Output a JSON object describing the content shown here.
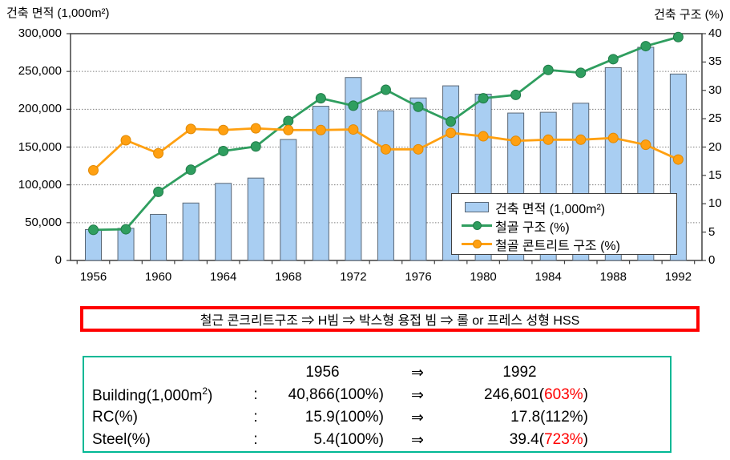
{
  "chart": {
    "title_left": "건축 면적 (1,000m²)",
    "title_right": "건축 구조 (%)"
  },
  "chart_data": {
    "type": "bar",
    "categories": [
      1956,
      1958,
      1960,
      1962,
      1964,
      1966,
      1968,
      1970,
      1972,
      1974,
      1976,
      1978,
      1980,
      1982,
      1984,
      1986,
      1988,
      1990,
      1992
    ],
    "x_tick_labels": [
      "1956",
      "1960",
      "1964",
      "1968",
      "1972",
      "1976",
      "1980",
      "1984",
      "1988",
      "1992"
    ],
    "series": [
      {
        "name": "건축 면적 (1,000m²)",
        "type": "bar",
        "axis": "left",
        "values": [
          40866,
          42500,
          61000,
          76000,
          102000,
          109000,
          160000,
          204000,
          242000,
          198000,
          215000,
          231000,
          220000,
          195000,
          196000,
          208000,
          255000,
          282000,
          246601
        ]
      },
      {
        "name": "철골 구조 (%)",
        "type": "line",
        "axis": "right",
        "values": [
          5.4,
          5.5,
          12.1,
          16.0,
          19.3,
          20.1,
          24.6,
          28.6,
          27.3,
          30.1,
          27.1,
          24.5,
          28.6,
          29.2,
          33.6,
          33.1,
          35.5,
          37.8,
          39.4
        ]
      },
      {
        "name": "철골 콘트리트 구조 (%)",
        "type": "line",
        "axis": "right",
        "values": [
          15.9,
          21.2,
          18.9,
          23.2,
          23.0,
          23.3,
          23.0,
          23.0,
          23.1,
          19.6,
          19.6,
          22.5,
          21.9,
          21.1,
          21.3,
          21.3,
          21.6,
          20.4,
          17.8
        ]
      }
    ],
    "left_axis": {
      "label": "건축 면적 (1,000m²)",
      "range": [
        0,
        300000
      ],
      "tick_step": 50000,
      "tick_labels_top_to_bottom": [
        "300,000",
        "250,000",
        "200,000",
        "150,000",
        "100,000",
        "50,000",
        "0"
      ]
    },
    "right_axis": {
      "label": "건축 구조 (%)",
      "range": [
        0,
        40
      ],
      "tick_step": 5,
      "tick_labels_top_to_bottom": [
        "40",
        "35",
        "30",
        "25",
        "20",
        "15",
        "10",
        "5",
        "0"
      ]
    },
    "grid": "horizontal-dotted",
    "legend_position": "inside-lower-right"
  },
  "colors": {
    "bar_fill": "#a9cef2",
    "bar_stroke": "#5a6775",
    "steel_line": "#2f9e5f",
    "steel_dot_stroke": "#1f7a47",
    "rc_line": "#ffa011",
    "rc_dot_stroke": "#e08800",
    "grid": "#7f7f7f",
    "plot_border": "#404040",
    "banner_border": "#ff0000",
    "table_border": "#00b895",
    "highlight_red": "#ff0000"
  },
  "legend": {
    "items": [
      {
        "label": "건축 면적 (1,000m²)",
        "swatch": "bar"
      },
      {
        "label": "철골 구조 (%)",
        "swatch": "line-green"
      },
      {
        "label": "철골 콘트리트 구조 (%)",
        "swatch": "line-orange"
      }
    ]
  },
  "banner": {
    "text": "철근 콘크리트구조 ⇒  H빔  ⇒  박스형 용접 빔  ⇒  롤 or 프레스 성형 HSS"
  },
  "summary_table": {
    "header": {
      "col_1956": "1956",
      "arrow": "⇒",
      "col_1992": "1992"
    },
    "rows": [
      {
        "label_main": "Building(1,000m",
        "label_sup": "2",
        "label_tail": ")",
        "colon": ":",
        "v1956": "40,866(100%)",
        "arrow": "⇒",
        "v1992_pre": "246,601(",
        "v1992_red": "603%",
        "v1992_post": ")"
      },
      {
        "label_main": "RC(%)",
        "label_sup": "",
        "label_tail": "",
        "colon": ":",
        "v1956": "15.9(100%)",
        "arrow": "⇒",
        "v1992_pre": "17.8(112%)",
        "v1992_red": "",
        "v1992_post": ""
      },
      {
        "label_main": "Steel(%)",
        "label_sup": "",
        "label_tail": "",
        "colon": ":",
        "v1956": "5.4(100%)",
        "arrow": "⇒",
        "v1992_pre": "39.4(",
        "v1992_red": "723%",
        "v1992_post": ")"
      }
    ]
  }
}
